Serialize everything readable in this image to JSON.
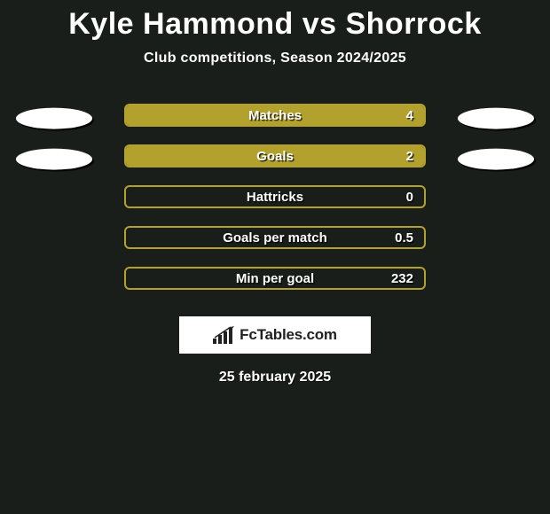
{
  "background_color": "#1a1e1b",
  "title": {
    "player1": "Kyle Hammond",
    "vs": "vs",
    "player2": "Shorrock",
    "color": "#ffffff",
    "fontsize": 34,
    "fontweight": 900
  },
  "subtitle": {
    "text": "Club competitions, Season 2024/2025",
    "color": "#ffffff",
    "fontsize": 16
  },
  "bar_area": {
    "track_width": 340,
    "track_height": 26,
    "border_radius": 6,
    "border_width": 2,
    "label_color": "#ffffff",
    "label_fontsize": 15,
    "value_color": "#ffffff",
    "value_fontsize": 15,
    "text_shadow": "1.5px 1.5px 0 rgba(0,0,0,0.7)"
  },
  "ellipse": {
    "width": 86,
    "height": 24,
    "color": "#ffffff",
    "shadow": "2px 2px 0 rgba(0,0,0,0.9)"
  },
  "rows": [
    {
      "label": "Matches",
      "value": "4",
      "fill_pct": 100,
      "fill_color": "#b3a12e",
      "border_color": "#b3a12e",
      "show_left_ellipse": true,
      "show_right_ellipse": true
    },
    {
      "label": "Goals",
      "value": "2",
      "fill_pct": 100,
      "fill_color": "#b3a12e",
      "border_color": "#b3a12e",
      "show_left_ellipse": true,
      "show_right_ellipse": true
    },
    {
      "label": "Hattricks",
      "value": "0",
      "fill_pct": 0,
      "fill_color": "#b3a12e",
      "border_color": "#b3a12e",
      "show_left_ellipse": false,
      "show_right_ellipse": false
    },
    {
      "label": "Goals per match",
      "value": "0.5",
      "fill_pct": 0,
      "fill_color": "#b3a12e",
      "border_color": "#b3a12e",
      "show_left_ellipse": false,
      "show_right_ellipse": false
    },
    {
      "label": "Min per goal",
      "value": "232",
      "fill_pct": 0,
      "fill_color": "#b3a12e",
      "border_color": "#b3a12e",
      "show_left_ellipse": false,
      "show_right_ellipse": false
    }
  ],
  "brand": {
    "text": "FcTables.com",
    "background": "#ffffff",
    "text_color": "#212121",
    "icon_color": "#212121"
  },
  "date": {
    "text": "25 february 2025",
    "color": "#ffffff",
    "fontsize": 16
  }
}
